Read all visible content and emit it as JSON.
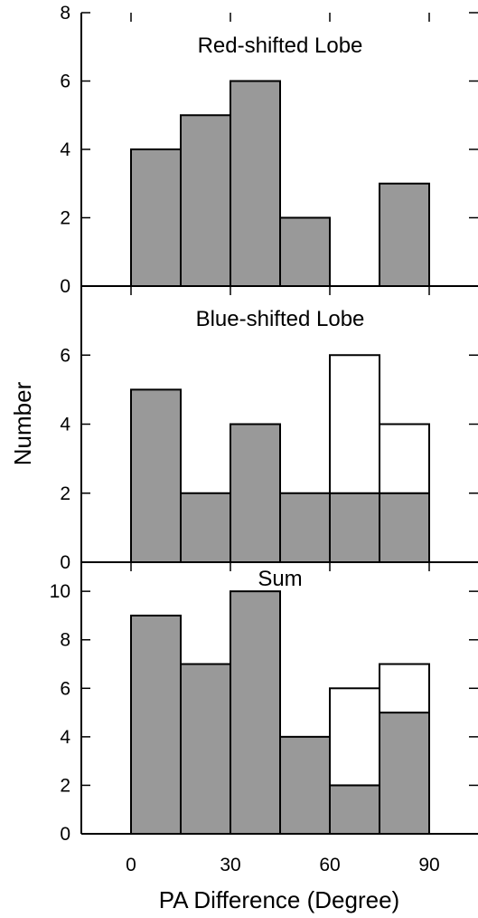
{
  "colors": {
    "filled_bar": "#999999",
    "open_bar": "#ffffff",
    "stroke": "#000000"
  },
  "chart_data": {
    "type": "bar",
    "subtype": "stacked-histogram",
    "xlabel": "PA Difference (Degree)",
    "ylabel": "Number",
    "xlim": [
      -10,
      100
    ],
    "x_ticks": [
      0,
      30,
      60,
      90
    ],
    "bin_width": 15,
    "bin_starts": [
      0,
      15,
      30,
      45,
      60,
      75
    ],
    "panels": [
      {
        "title": "Red-shifted Lobe",
        "ylim": [
          0,
          8
        ],
        "y_ticks": [
          0,
          2,
          4,
          6,
          8
        ],
        "series": [
          {
            "style": "filled",
            "values": [
              4,
              5,
              6,
              2,
              0,
              3
            ]
          },
          {
            "style": "open",
            "values": [
              0,
              0,
              0,
              0,
              0,
              0
            ]
          }
        ]
      },
      {
        "title": "Blue-shifted Lobe",
        "ylim": [
          0,
          8
        ],
        "y_ticks": [
          0,
          2,
          4,
          6
        ],
        "series": [
          {
            "style": "filled",
            "values": [
              5,
              2,
              4,
              2,
              2,
              2
            ]
          },
          {
            "style": "open",
            "values": [
              0,
              0,
              0,
              0,
              4,
              2
            ]
          }
        ]
      },
      {
        "title": "Sum",
        "ylim": [
          0,
          11.2
        ],
        "y_ticks": [
          0,
          2,
          4,
          6,
          8,
          10
        ],
        "series": [
          {
            "style": "filled",
            "values": [
              9,
              7,
              10,
              4,
              2,
              5
            ]
          },
          {
            "style": "open",
            "values": [
              0,
              0,
              0,
              0,
              4,
              2
            ]
          }
        ]
      }
    ]
  }
}
